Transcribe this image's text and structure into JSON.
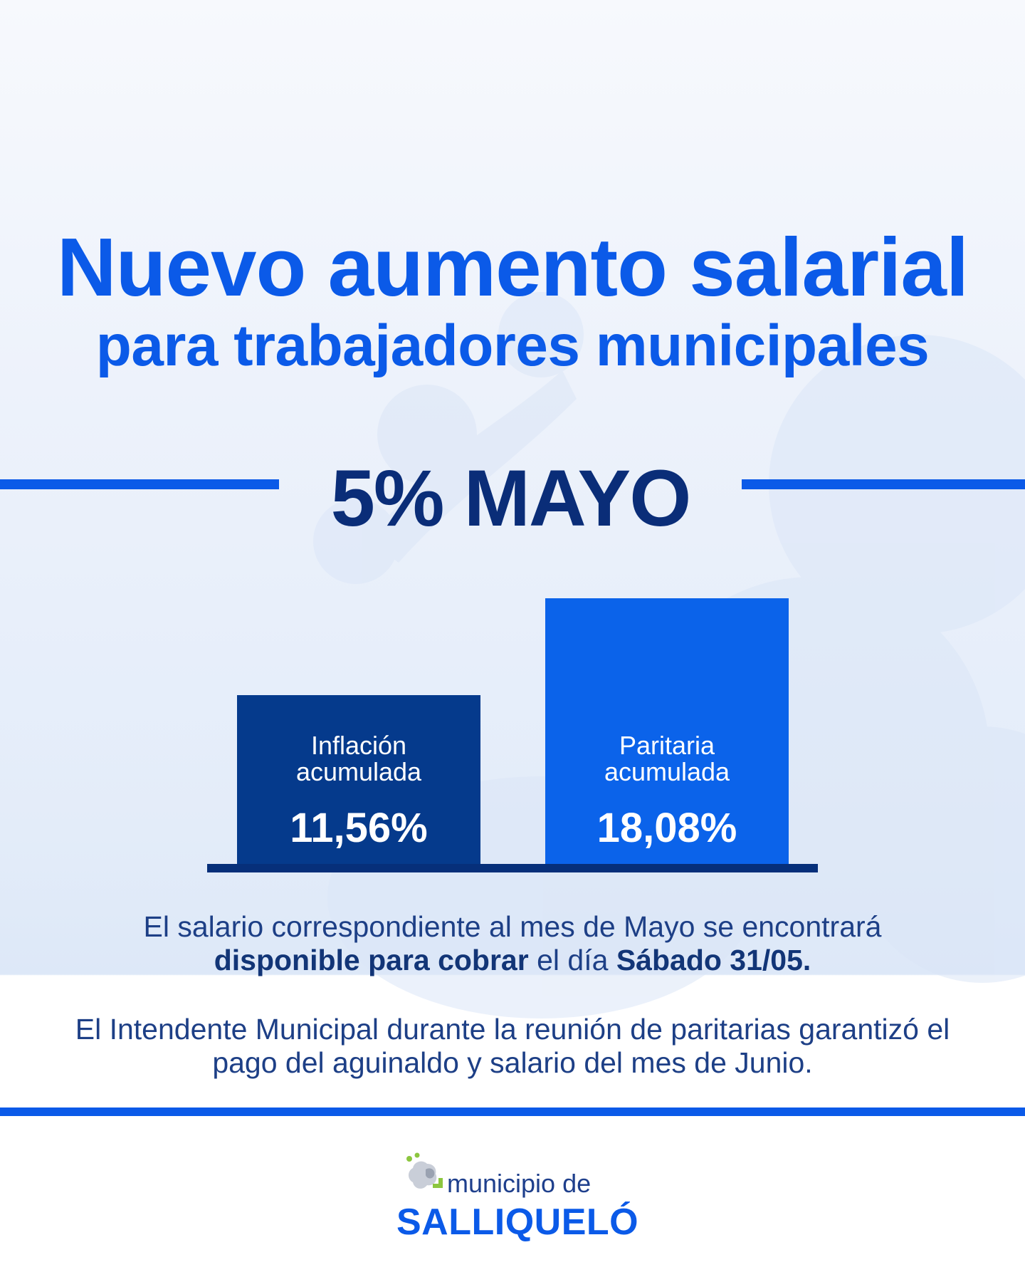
{
  "header": {
    "title_line1": "Nuevo aumento salarial",
    "title_line2": "para trabajadores municipales"
  },
  "headline": "5% MAYO",
  "chart_data": {
    "type": "bar",
    "categories": [
      "Inflación acumulada",
      "Paritaria acumulada"
    ],
    "category_lines": [
      [
        "Inflación",
        "acumulada"
      ],
      [
        "Paritaria",
        "acumulada"
      ]
    ],
    "values": [
      11.56,
      18.08
    ],
    "value_labels": [
      "11,56%",
      "18,08%"
    ],
    "colors": [
      "#053a8c",
      "#0b63ea"
    ],
    "title": "",
    "xlabel": "",
    "ylabel": "",
    "grid": false
  },
  "info": {
    "para1_pre": "El salario correspondiente al mes de Mayo se encontrará",
    "para1_bold1": "disponible para cobrar",
    "para1_mid": "el día",
    "para1_bold2": "Sábado 31/05.",
    "para2": "El Intendente Municipal durante la reunión de paritarias garantizó el pago del aguinaldo y salario del mes de Junio."
  },
  "footer": {
    "logo_top": "municipio de",
    "logo_bottom": "SALLIQUELÓ"
  },
  "colors": {
    "accent_blue": "#0b5ae8",
    "dark_navy": "#0a2d78",
    "bar_dark": "#053a8c",
    "bar_light": "#0b63ea",
    "logo_green": "#8cc63f"
  }
}
